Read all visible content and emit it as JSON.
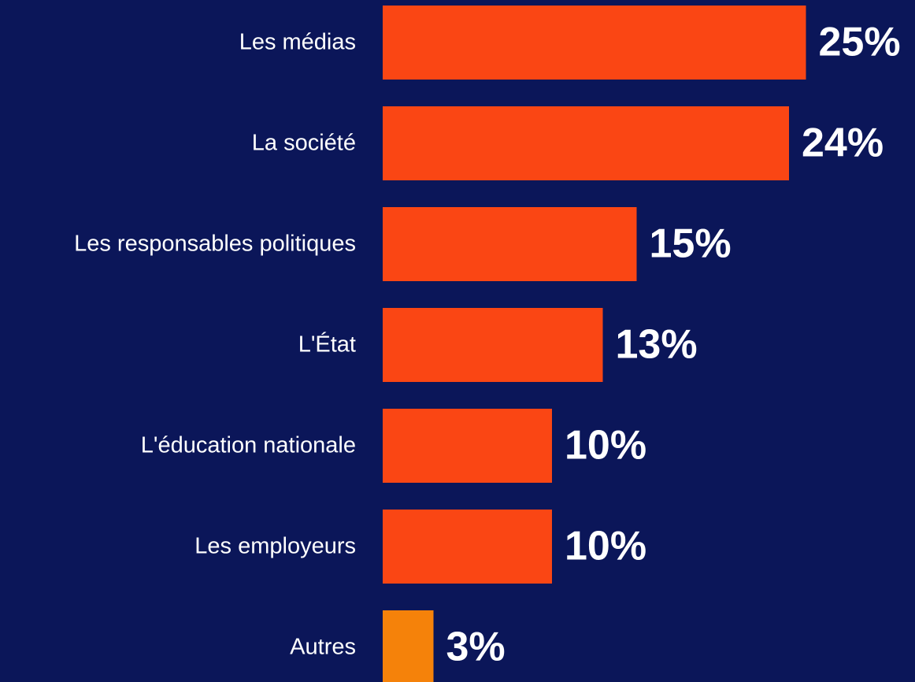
{
  "chart_data": {
    "type": "bar",
    "orientation": "horizontal",
    "categories": [
      "Les médias",
      "La société",
      "Les responsables politiques",
      "L'État",
      "L'éducation nationale",
      "Les employeurs",
      "Autres"
    ],
    "values": [
      25,
      24,
      15,
      13,
      10,
      10,
      3
    ],
    "value_labels": [
      "25%",
      "24%",
      "15%",
      "13%",
      "10%",
      "10%",
      "3%"
    ],
    "colors": [
      "#fa4614",
      "#fa4614",
      "#fa4614",
      "#fa4614",
      "#fa4614",
      "#fa4614",
      "#f5820a"
    ]
  }
}
